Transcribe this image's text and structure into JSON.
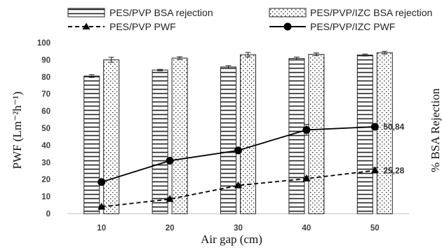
{
  "chart_data": {
    "type": "bar",
    "categories": [
      "10",
      "20",
      "30",
      "40",
      "50"
    ],
    "xlabel": "Air gap (cm)",
    "ylabel": "PWF (Lm⁻²h⁻¹)",
    "y2label": "% BSA Rejection",
    "ylim": [
      0,
      100
    ],
    "yticks": [
      "0",
      "10",
      "20",
      "30",
      "40",
      "50",
      "60",
      "70",
      "80",
      "90",
      "100"
    ],
    "grid": false,
    "legend_position": "top",
    "series": [
      {
        "name": "PES/PVP BSA rejection",
        "kind": "bar",
        "pattern": "horizontal-stripes",
        "values": [
          80.5,
          84,
          85.8,
          90.8,
          92.8
        ],
        "errors": [
          0.8,
          0.4,
          0.8,
          0.8,
          0.6
        ]
      },
      {
        "name": "PES/PVP/IZC BSA rejection",
        "kind": "bar",
        "pattern": "dots",
        "values": [
          90,
          91,
          93,
          93.2,
          94.2
        ],
        "errors": [
          1.5,
          0.8,
          1.3,
          0.8,
          0.8
        ]
      },
      {
        "name": "PES/PVP PWF",
        "kind": "line",
        "style": "dashed",
        "marker": "triangle",
        "values": [
          4,
          8.5,
          16.5,
          20.5,
          25.28
        ],
        "errors": [
          0.5,
          0.8,
          0.8,
          1.3,
          1.5
        ]
      },
      {
        "name": "PES/PVP/IZC PWF",
        "kind": "line",
        "style": "solid",
        "marker": "circle",
        "values": [
          18.5,
          31,
          37,
          49,
          50.84
        ],
        "errors": [
          0.8,
          1.3,
          0.8,
          3.2,
          1.5
        ]
      }
    ],
    "annotations": [
      {
        "text": "50,84",
        "series": 3,
        "index": 4
      },
      {
        "text": "25,28",
        "series": 2,
        "index": 4
      }
    ],
    "colors": {
      "bar_fill": "#ffffff",
      "bar_stroke": "#222222",
      "line": "#000000",
      "tick": "#404040"
    }
  }
}
